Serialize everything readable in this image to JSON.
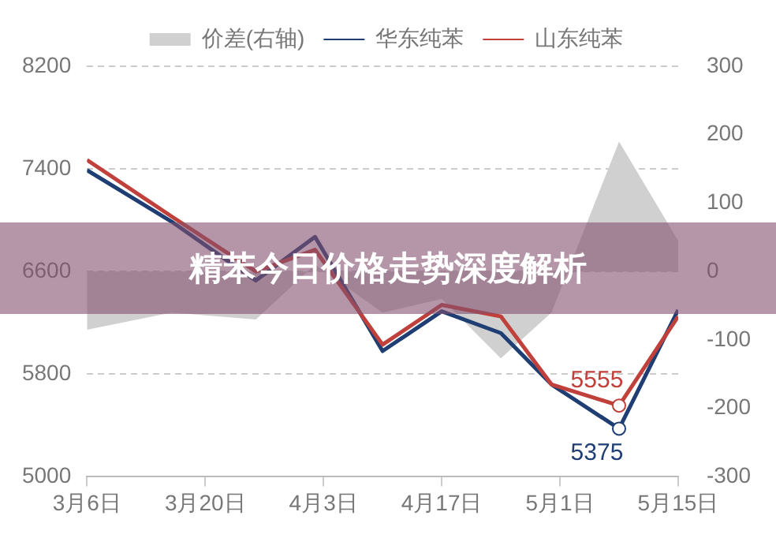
{
  "chart_data": {
    "type": "line",
    "title": "精苯今日价格走势深度解析",
    "x": [
      "--03-06",
      "--03-16",
      "--03-26",
      "--04-02",
      "--04-10",
      "--04-17",
      "--04-24",
      "--04-30",
      "--05-08",
      "--05-15"
    ],
    "series": [
      {
        "name": "价差(右轴)",
        "type": "area",
        "axis": "y2",
        "color": "#d0d0d0",
        "values": [
          -85,
          -60,
          -70,
          10,
          -60,
          -40,
          -127,
          -60,
          190,
          45
        ]
      },
      {
        "name": "华东纯苯",
        "color": "#1f3e73",
        "values": [
          7390,
          6990,
          6530,
          6870,
          5980,
          6290,
          6120,
          5720,
          5375,
          6300
        ],
        "value_labels": [
          null,
          null,
          null,
          null,
          null,
          null,
          null,
          null,
          "5375",
          null
        ]
      },
      {
        "name": "山东纯苯",
        "color": "#c0413b",
        "values": [
          7470,
          7030,
          6600,
          6770,
          6030,
          6340,
          6250,
          5720,
          5555,
          6250
        ],
        "value_labels": [
          null,
          null,
          null,
          null,
          null,
          null,
          null,
          null,
          "5555",
          null
        ]
      }
    ],
    "xlim": [
      "--03-06",
      "--05-15"
    ],
    "xticks": [
      {
        "value": "--03-06",
        "label": "3月6日"
      },
      {
        "value": "--03-20",
        "label": "3月20日"
      },
      {
        "value": "--04-03",
        "label": "4月3日"
      },
      {
        "value": "--04-17",
        "label": "4月17日"
      },
      {
        "value": "--05-01",
        "label": "5月1日"
      },
      {
        "value": "--05-15",
        "label": "5月15日"
      }
    ],
    "ylim": [
      5000,
      8200
    ],
    "yticks": [
      5000,
      5800,
      6600,
      7400,
      8200
    ],
    "y2lim": [
      -300,
      300
    ],
    "y2ticks": [
      -300,
      -200,
      -100,
      0,
      100,
      200,
      300
    ],
    "grid": "y",
    "legend": "top"
  }
}
